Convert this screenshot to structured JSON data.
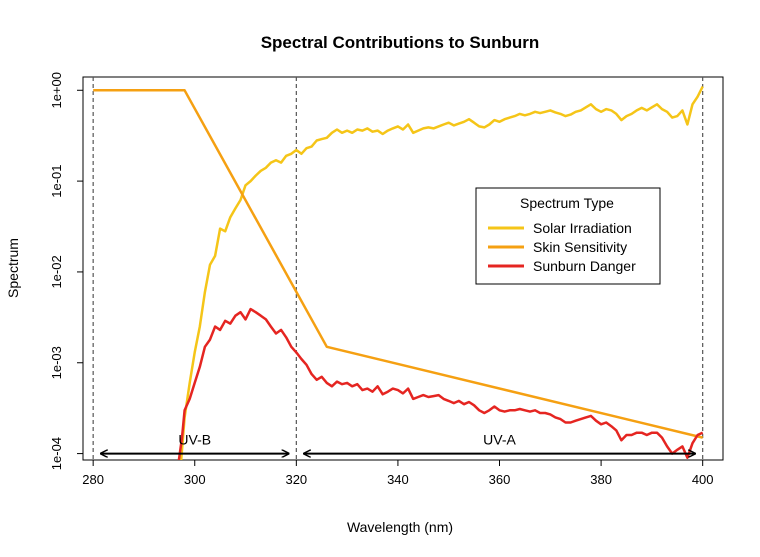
{
  "chart_data": {
    "type": "line",
    "title": "Spectral Contributions to Sunburn",
    "xlabel": "Wavelength (nm)",
    "ylabel": "Spectrum",
    "xlim": [
      278,
      404
    ],
    "ylim": [
      8.5e-05,
      1.4
    ],
    "yscale": "log",
    "x_ticks": [
      280,
      300,
      320,
      340,
      360,
      380,
      400
    ],
    "x_tick_labels": [
      "280",
      "300",
      "320",
      "340",
      "360",
      "380",
      "400"
    ],
    "y_ticks": [
      0.0001,
      0.001,
      0.01,
      0.1,
      1
    ],
    "y_tick_labels": [
      "1e-04",
      "1e-03",
      "1e-02",
      "1e-01",
      "1e+00"
    ],
    "vlines": [
      280,
      320,
      400
    ],
    "grid": false,
    "legend": {
      "title": "Spectrum Type",
      "position": "right",
      "entries": [
        "Solar Irradiation",
        "Skin Sensitivity",
        "Sunburn Danger"
      ]
    },
    "series": [
      {
        "name": "Solar Irradiation",
        "color": "#F5C518",
        "points": [
          [
            297,
            5e-05
          ],
          [
            298,
            0.00025
          ],
          [
            299,
            0.0006
          ],
          [
            300,
            0.0013
          ],
          [
            301,
            0.0025
          ],
          [
            302,
            0.006
          ],
          [
            303,
            0.012
          ],
          [
            304,
            0.015
          ],
          [
            305,
            0.03
          ],
          [
            306,
            0.028
          ],
          [
            307,
            0.04
          ],
          [
            308,
            0.05
          ],
          [
            309,
            0.062
          ],
          [
            310,
            0.09
          ],
          [
            311,
            0.1
          ],
          [
            312,
            0.115
          ],
          [
            313,
            0.13
          ],
          [
            314,
            0.14
          ],
          [
            315,
            0.16
          ],
          [
            316,
            0.17
          ],
          [
            317,
            0.16
          ],
          [
            318,
            0.19
          ],
          [
            319,
            0.2
          ],
          [
            320,
            0.22
          ],
          [
            321,
            0.2
          ],
          [
            322,
            0.23
          ],
          [
            323,
            0.24
          ],
          [
            324,
            0.28
          ],
          [
            325,
            0.29
          ],
          [
            326,
            0.3
          ],
          [
            327,
            0.34
          ],
          [
            328,
            0.37
          ],
          [
            329,
            0.34
          ],
          [
            330,
            0.36
          ],
          [
            331,
            0.34
          ],
          [
            332,
            0.37
          ],
          [
            333,
            0.36
          ],
          [
            334,
            0.38
          ],
          [
            335,
            0.35
          ],
          [
            336,
            0.36
          ],
          [
            337,
            0.33
          ],
          [
            338,
            0.36
          ],
          [
            339,
            0.38
          ],
          [
            340,
            0.4
          ],
          [
            341,
            0.37
          ],
          [
            342,
            0.42
          ],
          [
            343,
            0.34
          ],
          [
            344,
            0.36
          ],
          [
            345,
            0.38
          ],
          [
            346,
            0.39
          ],
          [
            347,
            0.38
          ],
          [
            348,
            0.4
          ],
          [
            349,
            0.42
          ],
          [
            350,
            0.44
          ],
          [
            351,
            0.41
          ],
          [
            352,
            0.43
          ],
          [
            353,
            0.45
          ],
          [
            354,
            0.48
          ],
          [
            355,
            0.44
          ],
          [
            356,
            0.4
          ],
          [
            357,
            0.39
          ],
          [
            358,
            0.42
          ],
          [
            359,
            0.47
          ],
          [
            360,
            0.45
          ],
          [
            361,
            0.48
          ],
          [
            362,
            0.5
          ],
          [
            363,
            0.52
          ],
          [
            364,
            0.55
          ],
          [
            365,
            0.53
          ],
          [
            366,
            0.55
          ],
          [
            367,
            0.58
          ],
          [
            368,
            0.56
          ],
          [
            369,
            0.58
          ],
          [
            370,
            0.6
          ],
          [
            371,
            0.57
          ],
          [
            372,
            0.55
          ],
          [
            373,
            0.52
          ],
          [
            374,
            0.54
          ],
          [
            375,
            0.58
          ],
          [
            376,
            0.6
          ],
          [
            377,
            0.65
          ],
          [
            378,
            0.7
          ],
          [
            379,
            0.62
          ],
          [
            380,
            0.58
          ],
          [
            381,
            0.62
          ],
          [
            382,
            0.6
          ],
          [
            383,
            0.55
          ],
          [
            384,
            0.47
          ],
          [
            385,
            0.52
          ],
          [
            386,
            0.55
          ],
          [
            387,
            0.6
          ],
          [
            388,
            0.64
          ],
          [
            389,
            0.6
          ],
          [
            390,
            0.65
          ],
          [
            391,
            0.7
          ],
          [
            392,
            0.62
          ],
          [
            393,
            0.58
          ],
          [
            394,
            0.5
          ],
          [
            395,
            0.52
          ],
          [
            396,
            0.6
          ],
          [
            397,
            0.42
          ],
          [
            398,
            0.7
          ],
          [
            399,
            0.85
          ],
          [
            400,
            1.1
          ]
        ]
      },
      {
        "name": "Skin Sensitivity",
        "color": "#F5A012",
        "points": [
          [
            280,
            1
          ],
          [
            298,
            1
          ],
          [
            326,
            0.0015
          ],
          [
            400,
            0.00015
          ]
        ]
      },
      {
        "name": "Sunburn Danger",
        "color": "#E52521",
        "points": [
          [
            296.5,
            6e-05
          ],
          [
            297.5,
            0.00015
          ],
          [
            298,
            0.0003
          ],
          [
            299,
            0.0004
          ],
          [
            300,
            0.0006
          ],
          [
            301,
            0.0009
          ],
          [
            302,
            0.0015
          ],
          [
            303,
            0.0018
          ],
          [
            304,
            0.0025
          ],
          [
            305,
            0.0023
          ],
          [
            306,
            0.0029
          ],
          [
            307,
            0.0027
          ],
          [
            308,
            0.0033
          ],
          [
            309,
            0.0036
          ],
          [
            310,
            0.003
          ],
          [
            311,
            0.0039
          ],
          [
            312,
            0.0036
          ],
          [
            313,
            0.0033
          ],
          [
            314,
            0.003
          ],
          [
            315,
            0.0025
          ],
          [
            316,
            0.0021
          ],
          [
            317,
            0.0023
          ],
          [
            318,
            0.0019
          ],
          [
            319,
            0.0015
          ],
          [
            320,
            0.0013
          ],
          [
            321,
            0.0011
          ],
          [
            322,
            0.00095
          ],
          [
            323,
            0.00075
          ],
          [
            324,
            0.00065
          ],
          [
            325,
            0.0007
          ],
          [
            326,
            0.0006
          ],
          [
            327,
            0.00055
          ],
          [
            328,
            0.00062
          ],
          [
            329,
            0.00058
          ],
          [
            330,
            0.0006
          ],
          [
            331,
            0.00055
          ],
          [
            332,
            0.00058
          ],
          [
            333,
            0.0005
          ],
          [
            334,
            0.00052
          ],
          [
            335,
            0.00048
          ],
          [
            336,
            0.00055
          ],
          [
            337,
            0.00045
          ],
          [
            338,
            0.00048
          ],
          [
            339,
            0.00052
          ],
          [
            340,
            0.0005
          ],
          [
            341,
            0.00046
          ],
          [
            342,
            0.00052
          ],
          [
            343,
            0.0004
          ],
          [
            344,
            0.00042
          ],
          [
            345,
            0.00044
          ],
          [
            346,
            0.00042
          ],
          [
            347,
            0.00043
          ],
          [
            348,
            0.00044
          ],
          [
            349,
            0.0004
          ],
          [
            350,
            0.00038
          ],
          [
            351,
            0.00036
          ],
          [
            352,
            0.00038
          ],
          [
            353,
            0.00035
          ],
          [
            354,
            0.00037
          ],
          [
            355,
            0.00034
          ],
          [
            356,
            0.0003
          ],
          [
            357,
            0.00028
          ],
          [
            358,
            0.0003
          ],
          [
            359,
            0.00033
          ],
          [
            360,
            0.0003
          ],
          [
            361,
            0.00029
          ],
          [
            362,
            0.0003
          ],
          [
            363,
            0.0003
          ],
          [
            364,
            0.00031
          ],
          [
            365,
            0.0003
          ],
          [
            366,
            0.00029
          ],
          [
            367,
            0.0003
          ],
          [
            368,
            0.00028
          ],
          [
            369,
            0.00028
          ],
          [
            370,
            0.00027
          ],
          [
            371,
            0.00025
          ],
          [
            372,
            0.00024
          ],
          [
            373,
            0.00022
          ],
          [
            374,
            0.00022
          ],
          [
            375,
            0.00023
          ],
          [
            376,
            0.00024
          ],
          [
            377,
            0.00025
          ],
          [
            378,
            0.00026
          ],
          [
            379,
            0.00023
          ],
          [
            380,
            0.00021
          ],
          [
            381,
            0.00022
          ],
          [
            382,
            0.0002
          ],
          [
            383,
            0.00018
          ],
          [
            384,
            0.00014
          ],
          [
            385,
            0.00016
          ],
          [
            386,
            0.00016
          ],
          [
            387,
            0.00017
          ],
          [
            388,
            0.00017
          ],
          [
            389,
            0.00016
          ],
          [
            390,
            0.00017
          ],
          [
            391,
            0.00017
          ],
          [
            392,
            0.00015
          ],
          [
            393,
            0.00012
          ],
          [
            394,
            0.0001
          ],
          [
            395,
            0.00011
          ],
          [
            396,
            0.00012
          ],
          [
            397,
            9e-05
          ],
          [
            398,
            0.00013
          ],
          [
            399,
            0.00016
          ],
          [
            400,
            0.00017
          ]
        ]
      }
    ],
    "annotations": [
      {
        "text": "UV-B",
        "x_from": 281.5,
        "x_to": 318.5,
        "label_x": 300
      },
      {
        "text": "UV-A",
        "x_from": 321.5,
        "x_to": 398.5,
        "label_x": 360
      }
    ],
    "annotation_y": 0.0001
  }
}
